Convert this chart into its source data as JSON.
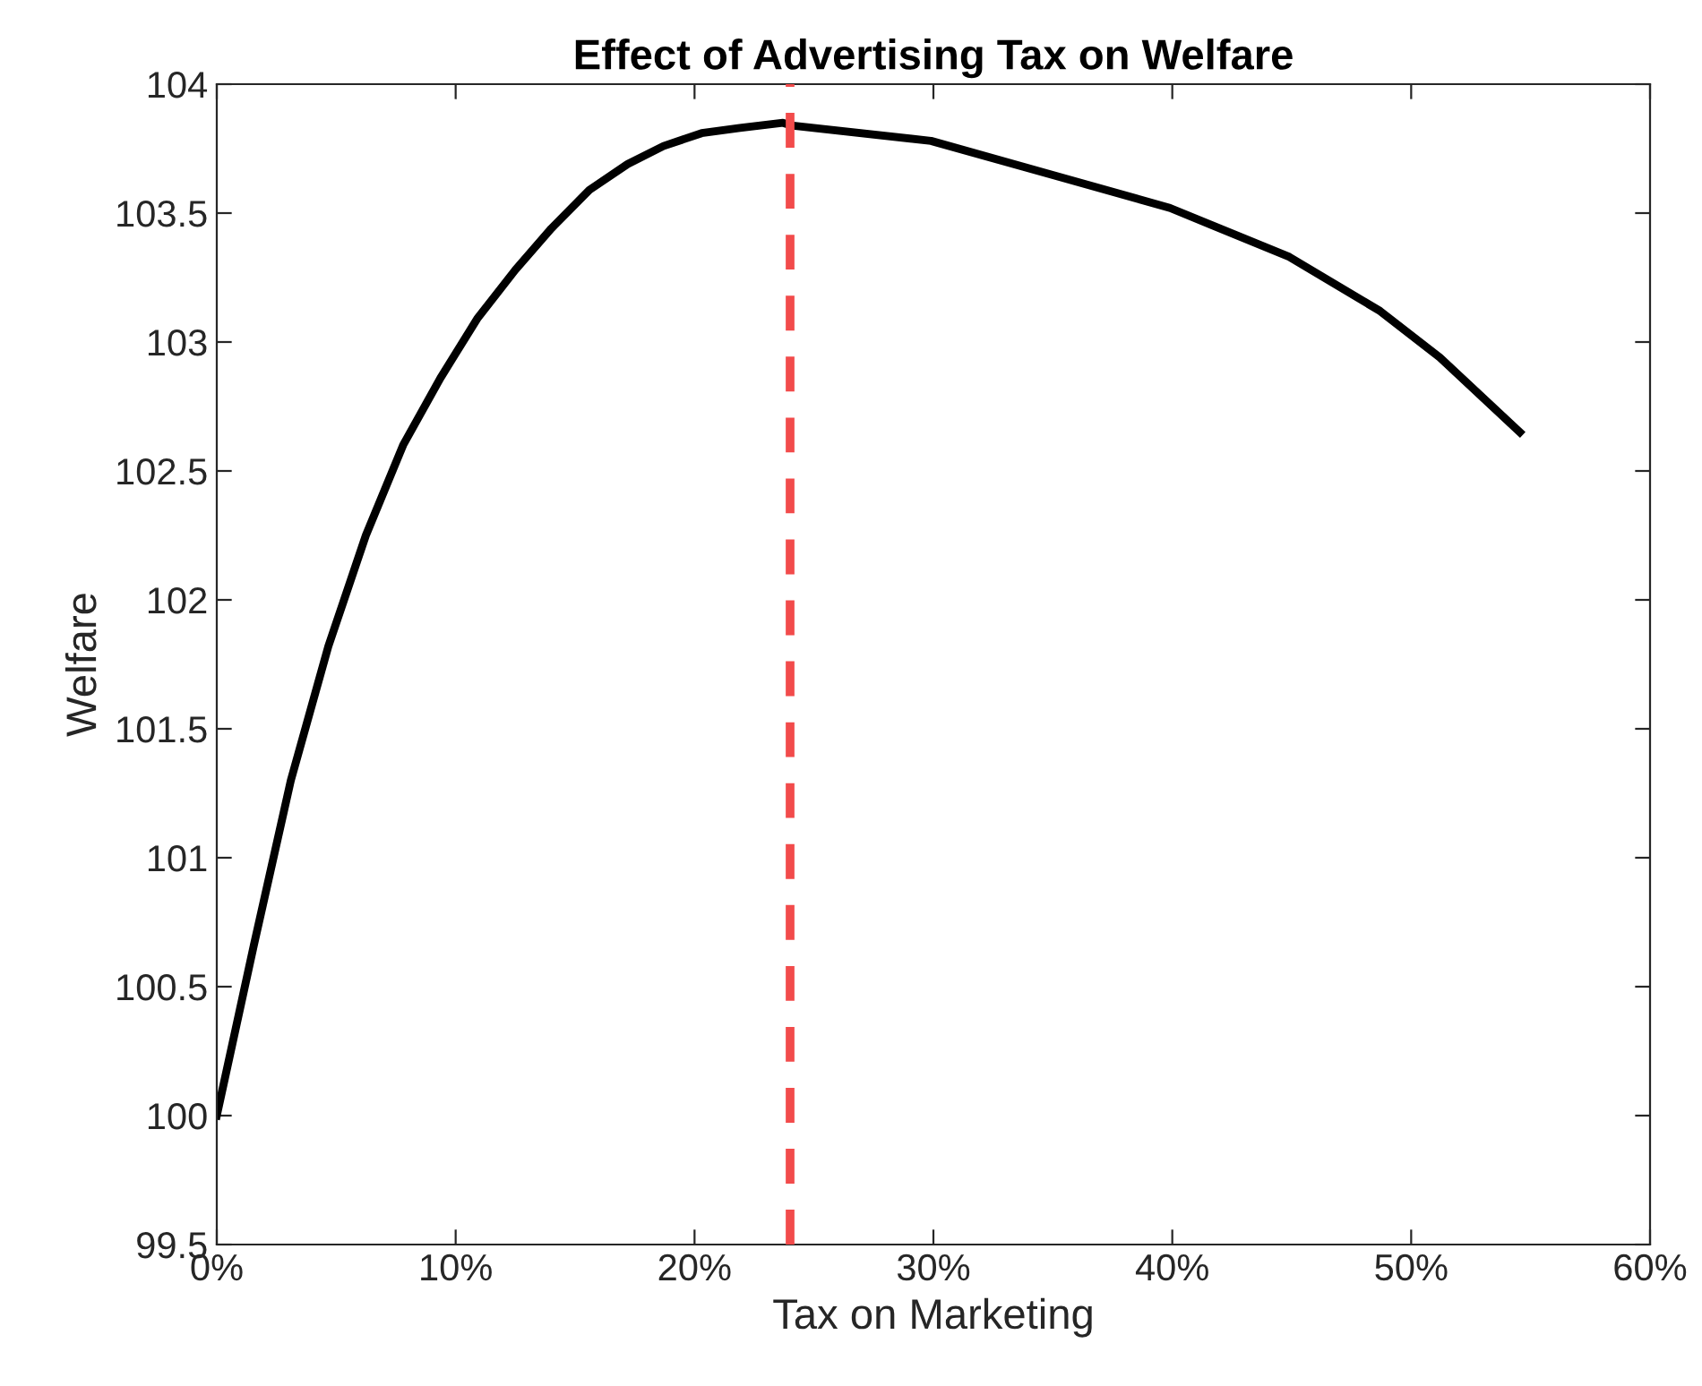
{
  "chart_data": {
    "type": "line",
    "title": "Effect of Advertising Tax on Welfare",
    "xlabel": "Tax on Marketing",
    "ylabel": "Welfare",
    "series": [
      {
        "color": "#000000",
        "x": [
          0,
          0.0155,
          0.031,
          0.0467,
          0.0624,
          0.078,
          0.0936,
          0.109,
          0.125,
          0.14,
          0.156,
          0.172,
          0.187,
          0.203,
          0.219,
          0.237,
          0.2405,
          0.299,
          0.349,
          0.399,
          0.449,
          0.487,
          0.512,
          0.5455
        ],
        "values": [
          100.0,
          100.66,
          101.3,
          101.82,
          102.25,
          102.6,
          102.86,
          103.09,
          103.28,
          103.44,
          103.59,
          103.69,
          103.76,
          103.81,
          103.83,
          103.85,
          103.84,
          103.78,
          103.65,
          103.52,
          103.33,
          103.12,
          102.94,
          102.65
        ]
      }
    ],
    "xlim": [
      0,
      0.6
    ],
    "xticks": [
      {
        "value": 0,
        "label": "0%"
      },
      {
        "value": 0.1,
        "label": "10%"
      },
      {
        "value": 0.2,
        "label": "20%"
      },
      {
        "value": 0.3,
        "label": "30%"
      },
      {
        "value": 0.4,
        "label": "40%"
      },
      {
        "value": 0.5,
        "label": "50%"
      },
      {
        "value": 0.6,
        "label": "60%"
      }
    ],
    "ylim": [
      99.5,
      104
    ],
    "yticks": [
      99.5,
      100,
      100.5,
      101,
      101.5,
      102,
      102.5,
      103,
      103.5,
      104
    ],
    "ref_lines": [
      {
        "axis": "x",
        "value": 0.24,
        "color": "#f24b4b",
        "line_style": "dashed"
      }
    ],
    "grid": false,
    "legend": false,
    "marker": "none",
    "line_style": "solid"
  }
}
